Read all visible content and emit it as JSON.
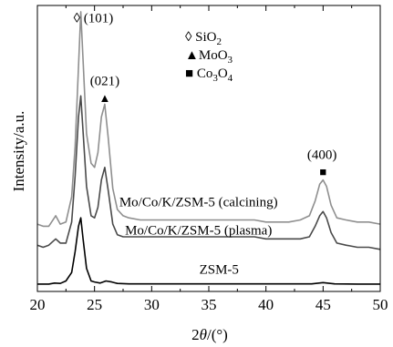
{
  "chart_data": {
    "type": "line",
    "xlabel_main": "2",
    "xlabel_theta": "θ",
    "xlabel_unit": "/(°)",
    "ylabel": "Intensity/a.u.",
    "xlim": [
      20,
      50
    ],
    "xticks": [
      "20",
      "25",
      "30",
      "35",
      "40",
      "45",
      "50"
    ],
    "grid": false,
    "legend": {
      "items": [
        {
          "marker": "◊",
          "name": "SiO",
          "sub": "2",
          "sub2": "",
          "tail": ""
        },
        {
          "marker": "▲",
          "name": "MoO",
          "sub": "3",
          "sub2": "",
          "tail": ""
        },
        {
          "marker": "■",
          "name": "Co",
          "sub": "3",
          "mid": "O",
          "sub2": "4"
        }
      ]
    },
    "annotations": [
      {
        "text": "◊ (101)",
        "x": 24.9,
        "y": 1.25
      },
      {
        "text": "(021)",
        "x": 25.9,
        "y": 0.95
      },
      {
        "text": "(400)",
        "x": 44.9,
        "y": 0.6
      }
    ],
    "markers": [
      {
        "symbol": "▲",
        "x": 25.9,
        "y": 0.87
      },
      {
        "symbol": "■",
        "x": 45.0,
        "y": 0.52
      }
    ],
    "series": [
      {
        "name": "Mo/Co/K/ZSM-5 (calcining)",
        "color": "#8f8f8f",
        "x": [
          20.0,
          20.5,
          21.0,
          21.6,
          22.0,
          22.5,
          23.0,
          23.3,
          23.6,
          23.8,
          24.0,
          24.3,
          24.7,
          25.0,
          25.3,
          25.6,
          25.9,
          26.2,
          26.6,
          27.0,
          27.5,
          28,
          29,
          30,
          31,
          32,
          33,
          34,
          35,
          36,
          37,
          38,
          39,
          40,
          41,
          42,
          43,
          43.8,
          44.3,
          44.7,
          45.0,
          45.3,
          45.7,
          46.2,
          47,
          48,
          49,
          50
        ],
        "y": [
          0.29,
          0.28,
          0.28,
          0.33,
          0.29,
          0.3,
          0.42,
          0.66,
          1.04,
          1.3,
          1.07,
          0.72,
          0.58,
          0.56,
          0.63,
          0.8,
          0.86,
          0.7,
          0.46,
          0.36,
          0.33,
          0.32,
          0.31,
          0.31,
          0.31,
          0.31,
          0.31,
          0.31,
          0.31,
          0.31,
          0.31,
          0.31,
          0.31,
          0.3,
          0.3,
          0.3,
          0.31,
          0.33,
          0.4,
          0.48,
          0.5,
          0.47,
          0.38,
          0.32,
          0.31,
          0.3,
          0.3,
          0.29
        ]
      },
      {
        "name": "Mo/Co/K/ZSM-5 (plasma)",
        "color": "#4a4a4a",
        "x": [
          20.0,
          20.5,
          21.0,
          21.6,
          22.0,
          22.5,
          23.0,
          23.3,
          23.6,
          23.8,
          24.0,
          24.3,
          24.7,
          25.0,
          25.3,
          25.6,
          25.9,
          26.2,
          26.6,
          27.0,
          27.5,
          28,
          29,
          30,
          31,
          32,
          33,
          34,
          35,
          36,
          37,
          38,
          39,
          40,
          41,
          42,
          43,
          43.8,
          44.3,
          44.7,
          45.0,
          45.3,
          45.7,
          46.2,
          47,
          48,
          49,
          50
        ],
        "y": [
          0.19,
          0.18,
          0.19,
          0.22,
          0.2,
          0.2,
          0.3,
          0.52,
          0.8,
          0.9,
          0.73,
          0.47,
          0.33,
          0.32,
          0.37,
          0.5,
          0.56,
          0.45,
          0.29,
          0.24,
          0.23,
          0.23,
          0.23,
          0.23,
          0.23,
          0.23,
          0.23,
          0.23,
          0.23,
          0.23,
          0.23,
          0.23,
          0.23,
          0.22,
          0.22,
          0.22,
          0.22,
          0.23,
          0.28,
          0.33,
          0.35,
          0.32,
          0.25,
          0.2,
          0.19,
          0.18,
          0.18,
          0.17
        ]
      },
      {
        "name": "ZSM-5",
        "color": "#000000",
        "x": [
          20.0,
          21.0,
          21.5,
          22.0,
          22.5,
          23.0,
          23.3,
          23.6,
          23.8,
          24.0,
          24.3,
          24.7,
          25.0,
          25.5,
          26.0,
          26.5,
          27,
          28,
          29,
          30,
          32,
          34,
          36,
          38,
          40,
          42,
          44,
          45,
          46,
          48,
          50
        ],
        "y": [
          0.005,
          0.005,
          0.01,
          0.008,
          0.02,
          0.06,
          0.16,
          0.28,
          0.32,
          0.22,
          0.08,
          0.02,
          0.015,
          0.01,
          0.02,
          0.015,
          0.008,
          0.006,
          0.006,
          0.006,
          0.006,
          0.006,
          0.006,
          0.006,
          0.006,
          0.006,
          0.006,
          0.012,
          0.006,
          0.005,
          0.005
        ]
      }
    ],
    "series_labels": [
      {
        "text": "Mo/Co/K/ZSM-5 (calcining)",
        "x": 34.1,
        "y": 0.375
      },
      {
        "text": "Mo/Co/K/ZSM-5 (plasma)",
        "x": 34.1,
        "y": 0.24
      },
      {
        "text": "ZSM-5",
        "x": 35.9,
        "y": 0.055
      }
    ],
    "ylim": [
      -0.03,
      1.33
    ]
  }
}
